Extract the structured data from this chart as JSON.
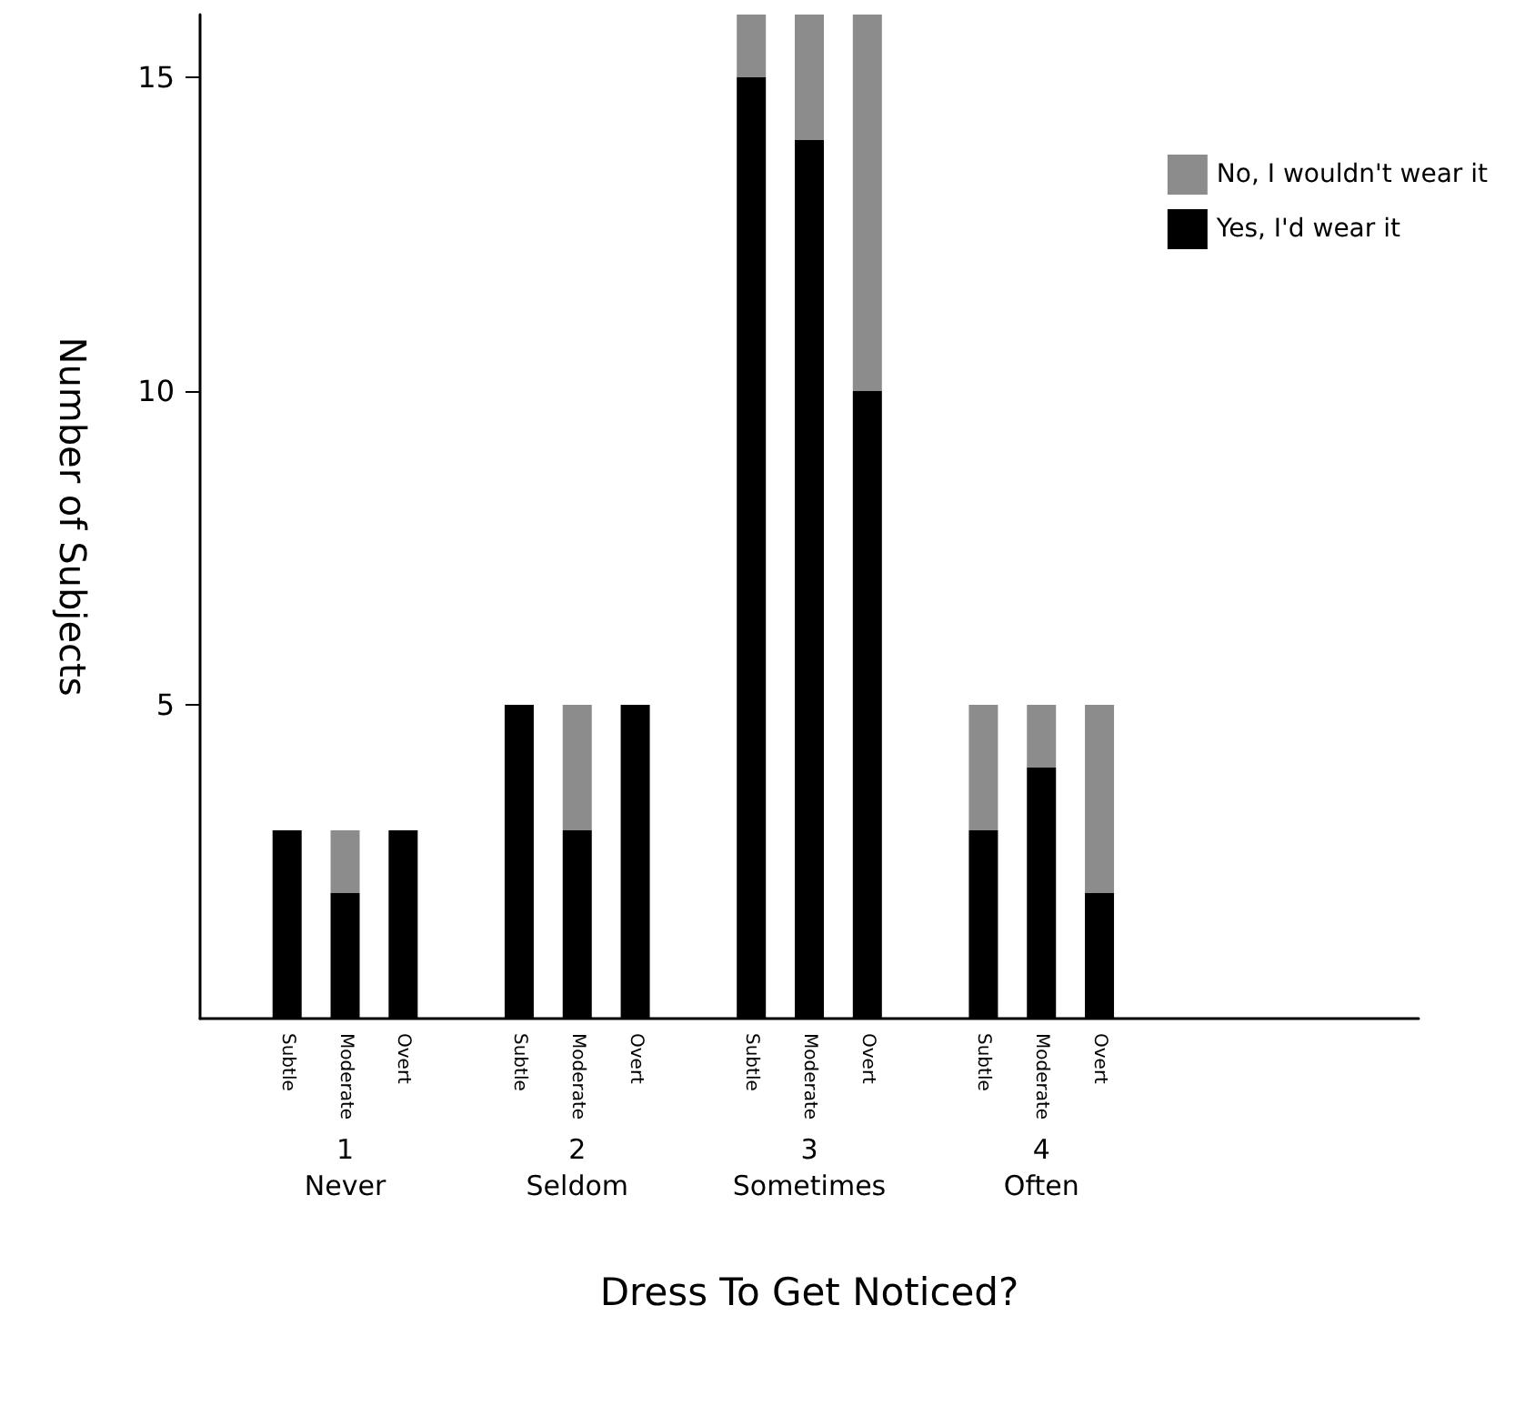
{
  "chart_data": {
    "type": "bar",
    "stacked": true,
    "xlabel": "Dress To Get Noticed?",
    "ylabel": "Number of Subjects",
    "categories": [
      null,
      "Subtle",
      "Moderate",
      "Overt",
      null,
      "Subtle",
      "Moderate",
      "Overt",
      null,
      "Subtle",
      "Moderate",
      "Overt",
      null,
      "Subtle",
      "Moderate",
      "Overt",
      null,
      null,
      null,
      null,
      null
    ],
    "series": [
      {
        "name": "Yes, I'd wear it",
        "color": "#000000",
        "values": [
          null,
          3,
          2,
          3,
          null,
          5,
          3,
          5,
          null,
          15,
          14,
          10,
          null,
          3,
          4,
          2,
          null,
          null,
          null,
          null,
          null
        ]
      },
      {
        "name": "No, I wouldn't wear it",
        "color": "#8c8c8c",
        "values": [
          null,
          0,
          1,
          0,
          null,
          0,
          2,
          0,
          null,
          1,
          2,
          6,
          null,
          2,
          1,
          3,
          null,
          null,
          null,
          null,
          null
        ]
      }
    ],
    "annotations": [
      "1\nNever",
      "2\nSeldom",
      "3\nSometimes",
      "4\nOften"
    ],
    "ylim": [
      0,
      16
    ],
    "yticks": [
      5,
      10,
      15
    ],
    "grid": false,
    "legend": "top right"
  }
}
